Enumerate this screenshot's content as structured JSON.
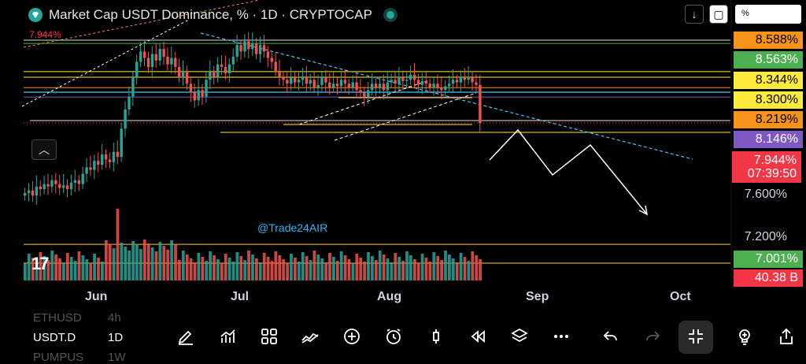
{
  "header": {
    "title": "Market Cap USDT Dominance, % · 1D · CRYPTOCAP",
    "current_value_label": "7.944%",
    "scale_mode": "%"
  },
  "price_scale": {
    "labels": [
      {
        "text": "8.588%",
        "bg": "#f7931a",
        "fg": "#000000",
        "value": 8.588
      },
      {
        "text": "8.563%",
        "bg": "#4caf50",
        "fg": "#ffffff",
        "value": 8.563
      },
      {
        "text": "8.344%",
        "bg": "#ffeb3b",
        "fg": "#000000",
        "value": 8.344
      },
      {
        "text": "8.300%",
        "bg": "#ffeb3b",
        "fg": "#000000",
        "value": 8.3
      },
      {
        "text": "8.219%",
        "bg": "#f7931a",
        "fg": "#000000",
        "value": 8.219
      },
      {
        "text": "8.146%",
        "bg": "#7e57c2",
        "fg": "#ffffff",
        "value": 8.146
      },
      {
        "text": "7.001%",
        "bg": "#4caf50",
        "fg": "#ffffff",
        "value": 7.001
      },
      {
        "text": "40.38 B",
        "bg": "#f23645",
        "fg": "#ffffff"
      }
    ],
    "plain_ticks": [
      "7.600%",
      "7.200%"
    ],
    "last_price": "7.944%",
    "countdown": "07:39:50"
  },
  "x_axis": {
    "labels": [
      "Jun",
      "Jul",
      "Aug",
      "Sep",
      "Oct"
    ]
  },
  "watermark": "@Trade24AIR",
  "colors": {
    "up": "#26a69a",
    "down": "#ef5350",
    "background": "#000000",
    "cyan_line": "#4fc3f7"
  },
  "chart_data": {
    "type": "candlestick",
    "title": "Market Cap USDT Dominance, %",
    "timeframe": "1D",
    "y_unit": "%",
    "ylim": [
      6.9,
      8.65
    ],
    "x_ticks": [
      "Jun",
      "Jul",
      "Aug",
      "Sep",
      "Oct"
    ],
    "last": 7.944,
    "volume_last": "40.38 B",
    "horizontal_levels": [
      8.588,
      8.563,
      8.344,
      8.3,
      8.219,
      8.146,
      7.001
    ],
    "close_series": [
      7.4,
      7.42,
      7.38,
      7.45,
      7.43,
      7.47,
      7.45,
      7.5,
      7.47,
      7.44,
      7.46,
      7.43,
      7.48,
      7.5,
      7.47,
      7.55,
      7.6,
      7.58,
      7.65,
      7.62,
      7.7,
      7.66,
      7.64,
      7.72,
      7.68,
      7.9,
      8.05,
      8.15,
      8.3,
      8.42,
      8.5,
      8.45,
      8.38,
      8.48,
      8.43,
      8.52,
      8.46,
      8.4,
      8.45,
      8.38,
      8.3,
      8.35,
      8.25,
      8.18,
      8.12,
      8.2,
      8.15,
      8.28,
      8.35,
      8.3,
      8.4,
      8.38,
      8.33,
      8.4,
      8.46,
      8.55,
      8.5,
      8.58,
      8.52,
      8.56,
      8.48,
      8.55,
      8.5,
      8.45,
      8.42,
      8.35,
      8.3,
      8.28,
      8.25,
      8.3,
      8.26,
      8.28,
      8.3,
      8.25,
      8.28,
      8.22,
      8.24,
      8.3,
      8.26,
      8.22,
      8.25,
      8.23,
      8.28,
      8.25,
      8.22,
      8.26,
      8.2,
      8.18,
      8.15,
      8.2,
      8.25,
      8.22,
      8.25,
      8.2,
      8.26,
      8.28,
      8.25,
      8.3,
      8.27,
      8.28,
      8.32,
      8.28,
      8.24,
      8.27,
      8.25,
      8.22,
      8.25,
      8.22,
      8.2,
      8.23,
      8.25,
      8.28,
      8.26,
      8.3,
      8.28,
      8.3,
      8.26,
      8.24,
      7.944
    ]
  },
  "toolbar": {
    "symbols": [
      {
        "sym": "ETHUSD",
        "tf": "4h",
        "active": false
      },
      {
        "sym": "USDT.D",
        "tf": "1D",
        "active": true
      },
      {
        "sym": "PUMPUS",
        "tf": "1W",
        "active": false
      }
    ],
    "tools": [
      "pencil-icon",
      "chart-icon",
      "grid-icon",
      "line-tool-icon",
      "plus-circle-icon",
      "alarm-icon",
      "candle-icon",
      "replay-icon",
      "layers-icon",
      "more-icon",
      "undo-icon",
      "redo-icon",
      "collapse-icon",
      "lightbulb-icon",
      "share-icon"
    ]
  }
}
